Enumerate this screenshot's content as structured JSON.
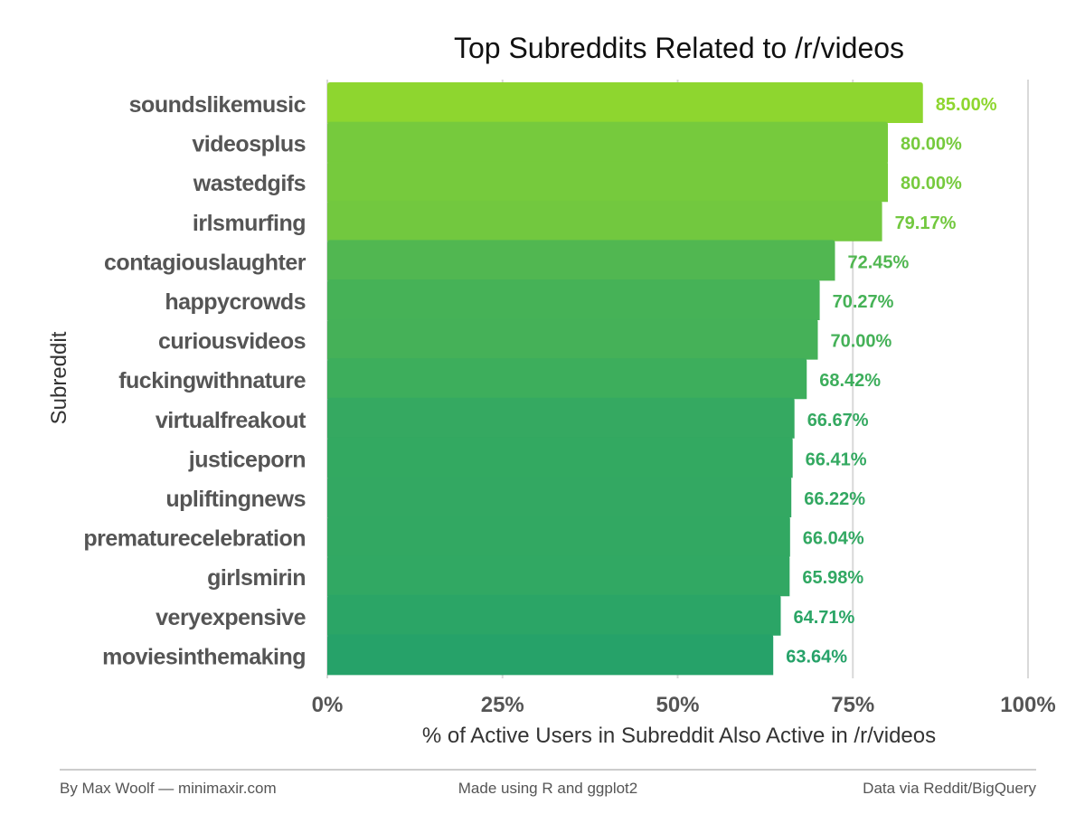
{
  "chart_data": {
    "type": "bar",
    "orientation": "horizontal",
    "title": "Top Subreddits Related to /r/videos",
    "xlabel": "% of Active Users in Subreddit Also Active in /r/videos",
    "ylabel": "Subreddit",
    "xlim": [
      0,
      100
    ],
    "x_ticks": [
      0,
      25,
      50,
      75,
      100
    ],
    "x_tick_labels": [
      "0%",
      "25%",
      "50%",
      "75%",
      "100%"
    ],
    "grid": "vertical major gridlines",
    "legend": "none",
    "categories": [
      "soundslikemusic",
      "videosplus",
      "wastedgifs",
      "irlsmurfing",
      "contagiouslaughter",
      "happycrowds",
      "curiousvideos",
      "fuckingwithnature",
      "virtualfreakout",
      "justiceporn",
      "upliftingnews",
      "prematurecelebration",
      "girlsmirin",
      "veryexpensive",
      "moviesinthemaking"
    ],
    "values": [
      85.0,
      80.0,
      80.0,
      79.17,
      72.45,
      70.27,
      70.0,
      68.42,
      66.67,
      66.41,
      66.22,
      66.04,
      65.98,
      64.71,
      63.64
    ],
    "value_labels": [
      "85.00%",
      "80.00%",
      "80.00%",
      "79.17%",
      "72.45%",
      "70.27%",
      "70.00%",
      "68.42%",
      "66.67%",
      "66.41%",
      "66.22%",
      "66.04%",
      "65.98%",
      "64.71%",
      "63.64%"
    ],
    "color_scale": {
      "low": "#26a269",
      "high": "#8ed62f"
    }
  },
  "footer": {
    "left": "By Max Woolf — minimaxir.com",
    "center": "Made using R and ggplot2",
    "right": "Data via Reddit/BigQuery"
  }
}
